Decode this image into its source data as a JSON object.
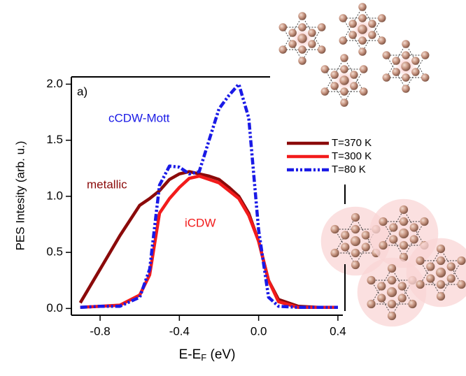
{
  "chart_data": {
    "type": "line",
    "ylabel": "PES Intesity (arb. u.)",
    "xlabel": [
      "E-E",
      "F",
      " (eV)"
    ],
    "x": [
      -0.9,
      -0.8,
      -0.7,
      -0.6,
      -0.55,
      -0.5,
      -0.45,
      -0.4,
      -0.35,
      -0.3,
      -0.25,
      -0.2,
      -0.15,
      -0.1,
      -0.05,
      0.0,
      0.05,
      0.1,
      0.2,
      0.3,
      0.4
    ],
    "series": [
      {
        "name": "T=370 K",
        "color": "#8b0a0a",
        "dash": "solid",
        "values": [
          0.05,
          0.35,
          0.65,
          0.92,
          0.98,
          1.05,
          1.15,
          1.2,
          1.22,
          1.2,
          1.18,
          1.15,
          1.08,
          1.0,
          0.85,
          0.6,
          0.25,
          0.08,
          0.02,
          0.01,
          0.01
        ]
      },
      {
        "name": "T=300 K",
        "color": "#f21b1b",
        "dash": "solid",
        "values": [
          0.01,
          0.02,
          0.03,
          0.12,
          0.3,
          0.85,
          0.98,
          1.08,
          1.16,
          1.18,
          1.15,
          1.12,
          1.05,
          0.98,
          0.83,
          0.6,
          0.25,
          0.06,
          0.01,
          0.01,
          0.01
        ]
      },
      {
        "name": "T=80 K",
        "color": "#1a1ae6",
        "dash": "dashdotdot",
        "values": [
          0.01,
          0.02,
          0.02,
          0.1,
          0.35,
          1.1,
          1.27,
          1.26,
          1.2,
          1.22,
          1.5,
          1.78,
          1.9,
          2.0,
          1.7,
          0.7,
          0.1,
          0.02,
          0.01,
          0.01,
          0.01
        ]
      }
    ],
    "annotations": [
      {
        "text": "a)",
        "color": "#000000"
      },
      {
        "text": "cCDW-Mott",
        "color": "#1a1ae6"
      },
      {
        "text": "metallic",
        "color": "#8b0a0a"
      },
      {
        "text": "iCDW",
        "color": "#f21b1b"
      }
    ],
    "xlim": [
      -0.945,
      0.425
    ],
    "xticks": [
      -0.8,
      -0.4,
      {
        "value": 0.0,
        "label": "0.0"
      },
      0.4
    ],
    "ylim": [
      -0.06,
      2.065
    ],
    "yticks": [
      {
        "value": 0,
        "label": "0.0"
      },
      0.5,
      {
        "value": 1,
        "label": "1.0"
      },
      1.5,
      {
        "value": 2,
        "label": "2.0"
      }
    ],
    "grid": false
  }
}
